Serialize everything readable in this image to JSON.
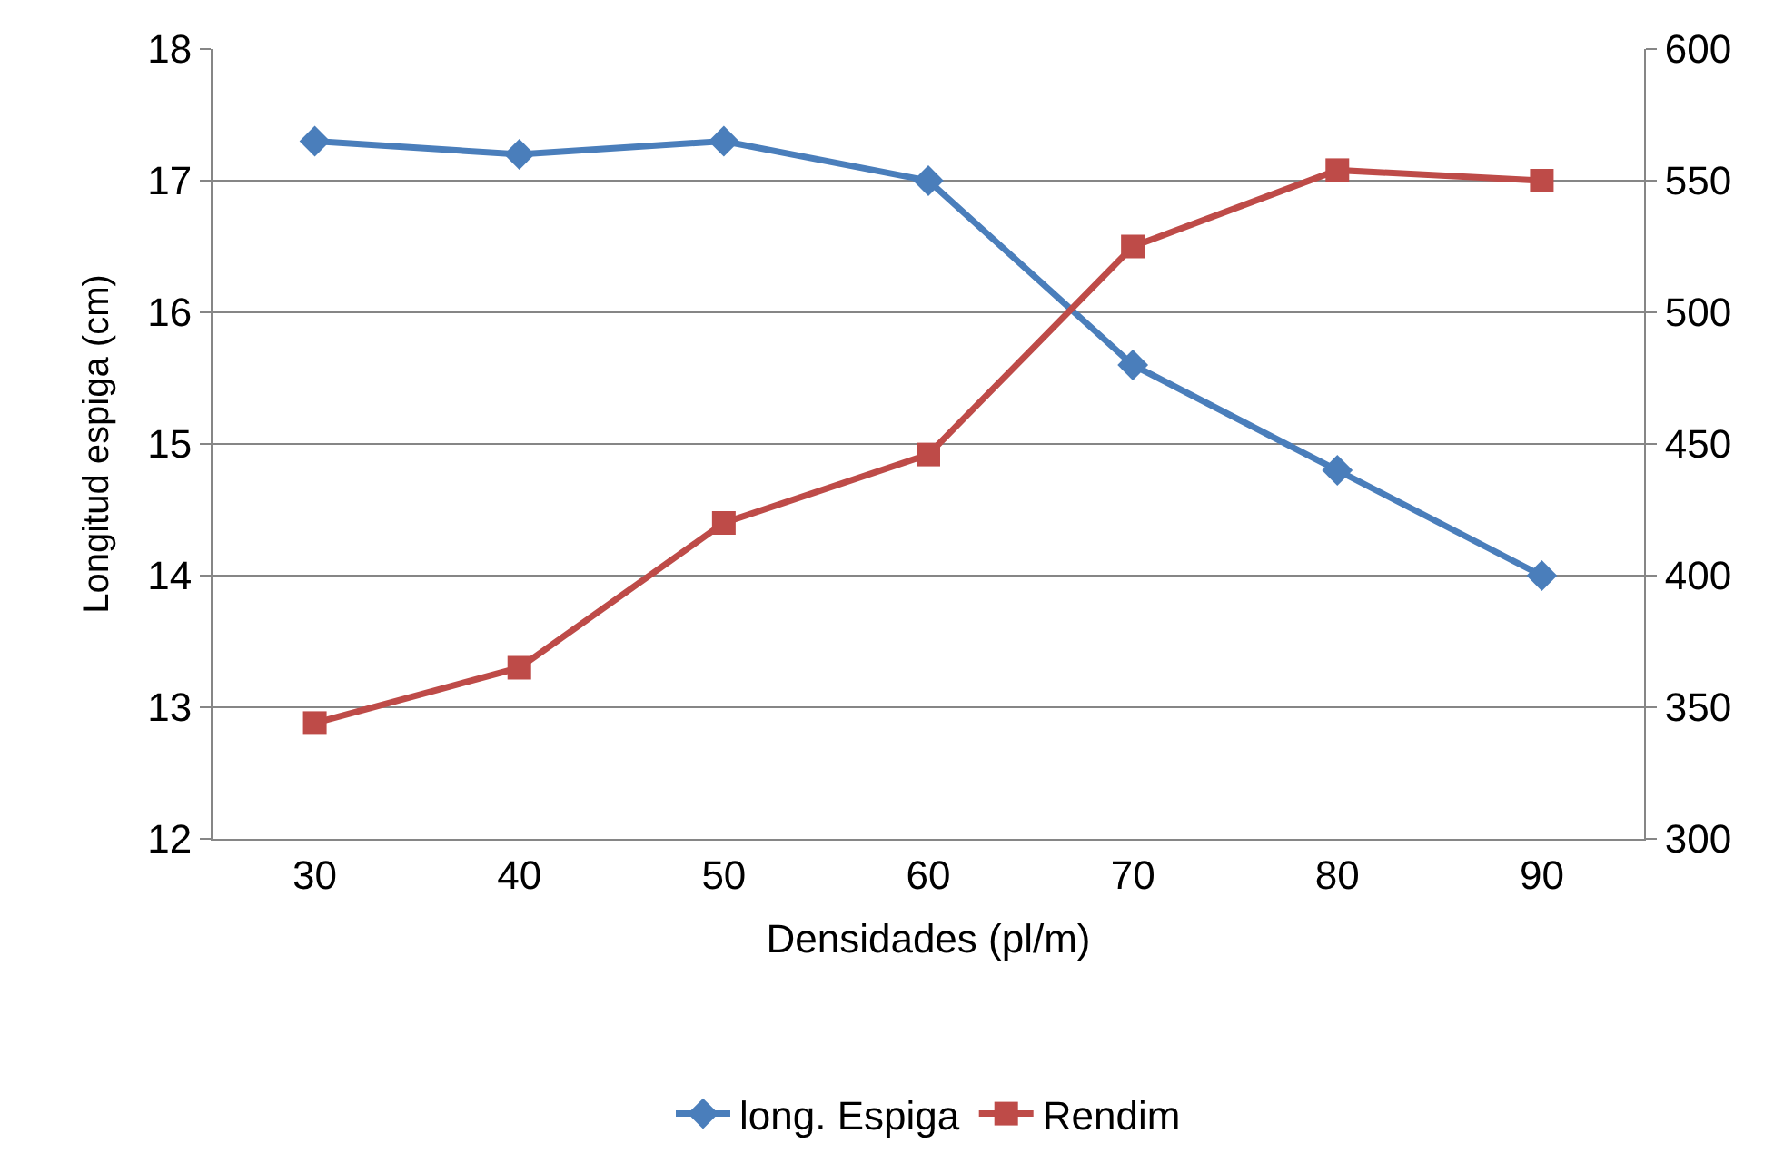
{
  "chart_data": {
    "type": "line",
    "xlabel": "Densidades (pl/m)",
    "ylabel": "Longitud espiga (cm)",
    "categories": [
      "30",
      "40",
      "50",
      "60",
      "70",
      "80",
      "90"
    ],
    "series": [
      {
        "name": "long. Espiga",
        "color": "#4a7ebb",
        "marker": "diamond",
        "values": [
          17.3,
          17.2,
          17.3,
          17.0,
          15.6,
          14.8,
          14.0
        ]
      },
      {
        "name": "Rendim",
        "color": "#be4b48",
        "marker": "square",
        "axis": "y2",
        "values": [
          344,
          365,
          420,
          446,
          525,
          554,
          550
        ]
      }
    ],
    "ylim": [
      12,
      18
    ],
    "yticks": [
      12,
      13,
      14,
      15,
      16,
      17,
      18
    ],
    "y2lim": [
      300,
      600
    ],
    "y2ticks": [
      300,
      350,
      400,
      450,
      500,
      550,
      600
    ],
    "grid": "y",
    "legend": "bottom"
  }
}
